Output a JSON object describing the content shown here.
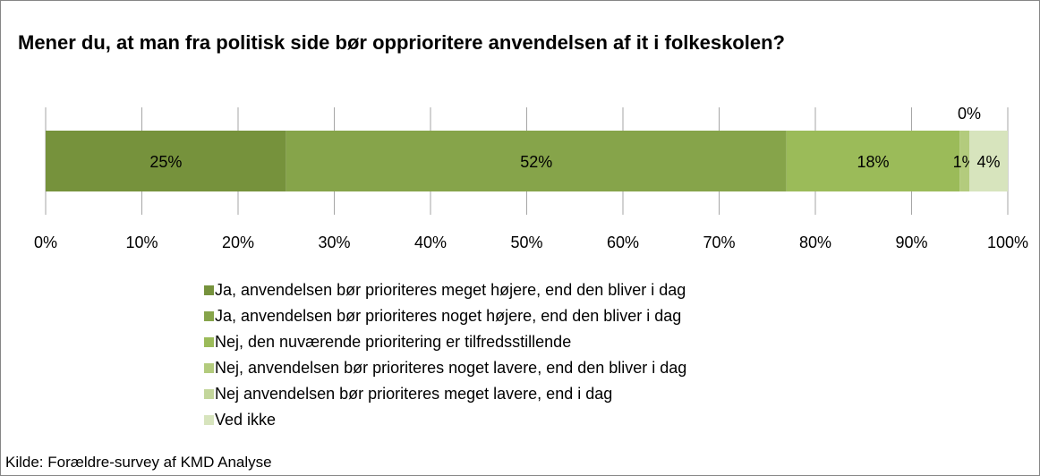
{
  "chart_data": {
    "type": "stacked-bar-horizontal",
    "title": "Mener du, at man fra politisk side bør opprioritere anvendelsen af it i folkeskolen?",
    "source": "Kilde: Forældre-survey af KMD Analyse",
    "categories": [
      null
    ],
    "series": [
      {
        "name": "Ja, anvendelsen bør prioriteres meget højere, end den bliver i dag",
        "color": "#76923c",
        "values": [
          25
        ],
        "value_labels": [
          "25%"
        ]
      },
      {
        "name": "Ja, anvendelsen bør prioriteres noget højere, end den bliver i dag",
        "color": "#86a44a",
        "values": [
          52
        ],
        "value_labels": [
          "52%"
        ]
      },
      {
        "name": "Nej, den nuværende prioritering er tilfredsstillende",
        "color": "#9bbb59",
        "values": [
          18
        ],
        "value_labels": [
          "18%"
        ]
      },
      {
        "name": "Nej, anvendelsen bør prioriteres noget lavere, end den bliver i dag",
        "color": "#b3cb7d",
        "values": [
          1
        ],
        "value_labels": [
          "1%"
        ]
      },
      {
        "name": "Nej anvendelsen bør prioriteres meget lavere, end i dag",
        "color": "#c3d69b",
        "values": [
          0
        ],
        "value_labels": [
          "0%"
        ]
      },
      {
        "name": "Ved ikke",
        "color": "#d7e4bd",
        "values": [
          4
        ],
        "value_labels": [
          "4%"
        ]
      }
    ],
    "xlim": [
      0,
      100
    ],
    "xticks": [
      {
        "value": 0,
        "label": "0%"
      },
      {
        "value": 10,
        "label": "10%"
      },
      {
        "value": 20,
        "label": "20%"
      },
      {
        "value": 30,
        "label": "30%"
      },
      {
        "value": 40,
        "label": "40%"
      },
      {
        "value": 50,
        "label": "50%"
      },
      {
        "value": 60,
        "label": "60%"
      },
      {
        "value": 70,
        "label": "70%"
      },
      {
        "value": 80,
        "label": "80%"
      },
      {
        "value": 90,
        "label": "90%"
      },
      {
        "value": 100,
        "label": "100%"
      }
    ],
    "grid": true,
    "legend": "bottom"
  }
}
